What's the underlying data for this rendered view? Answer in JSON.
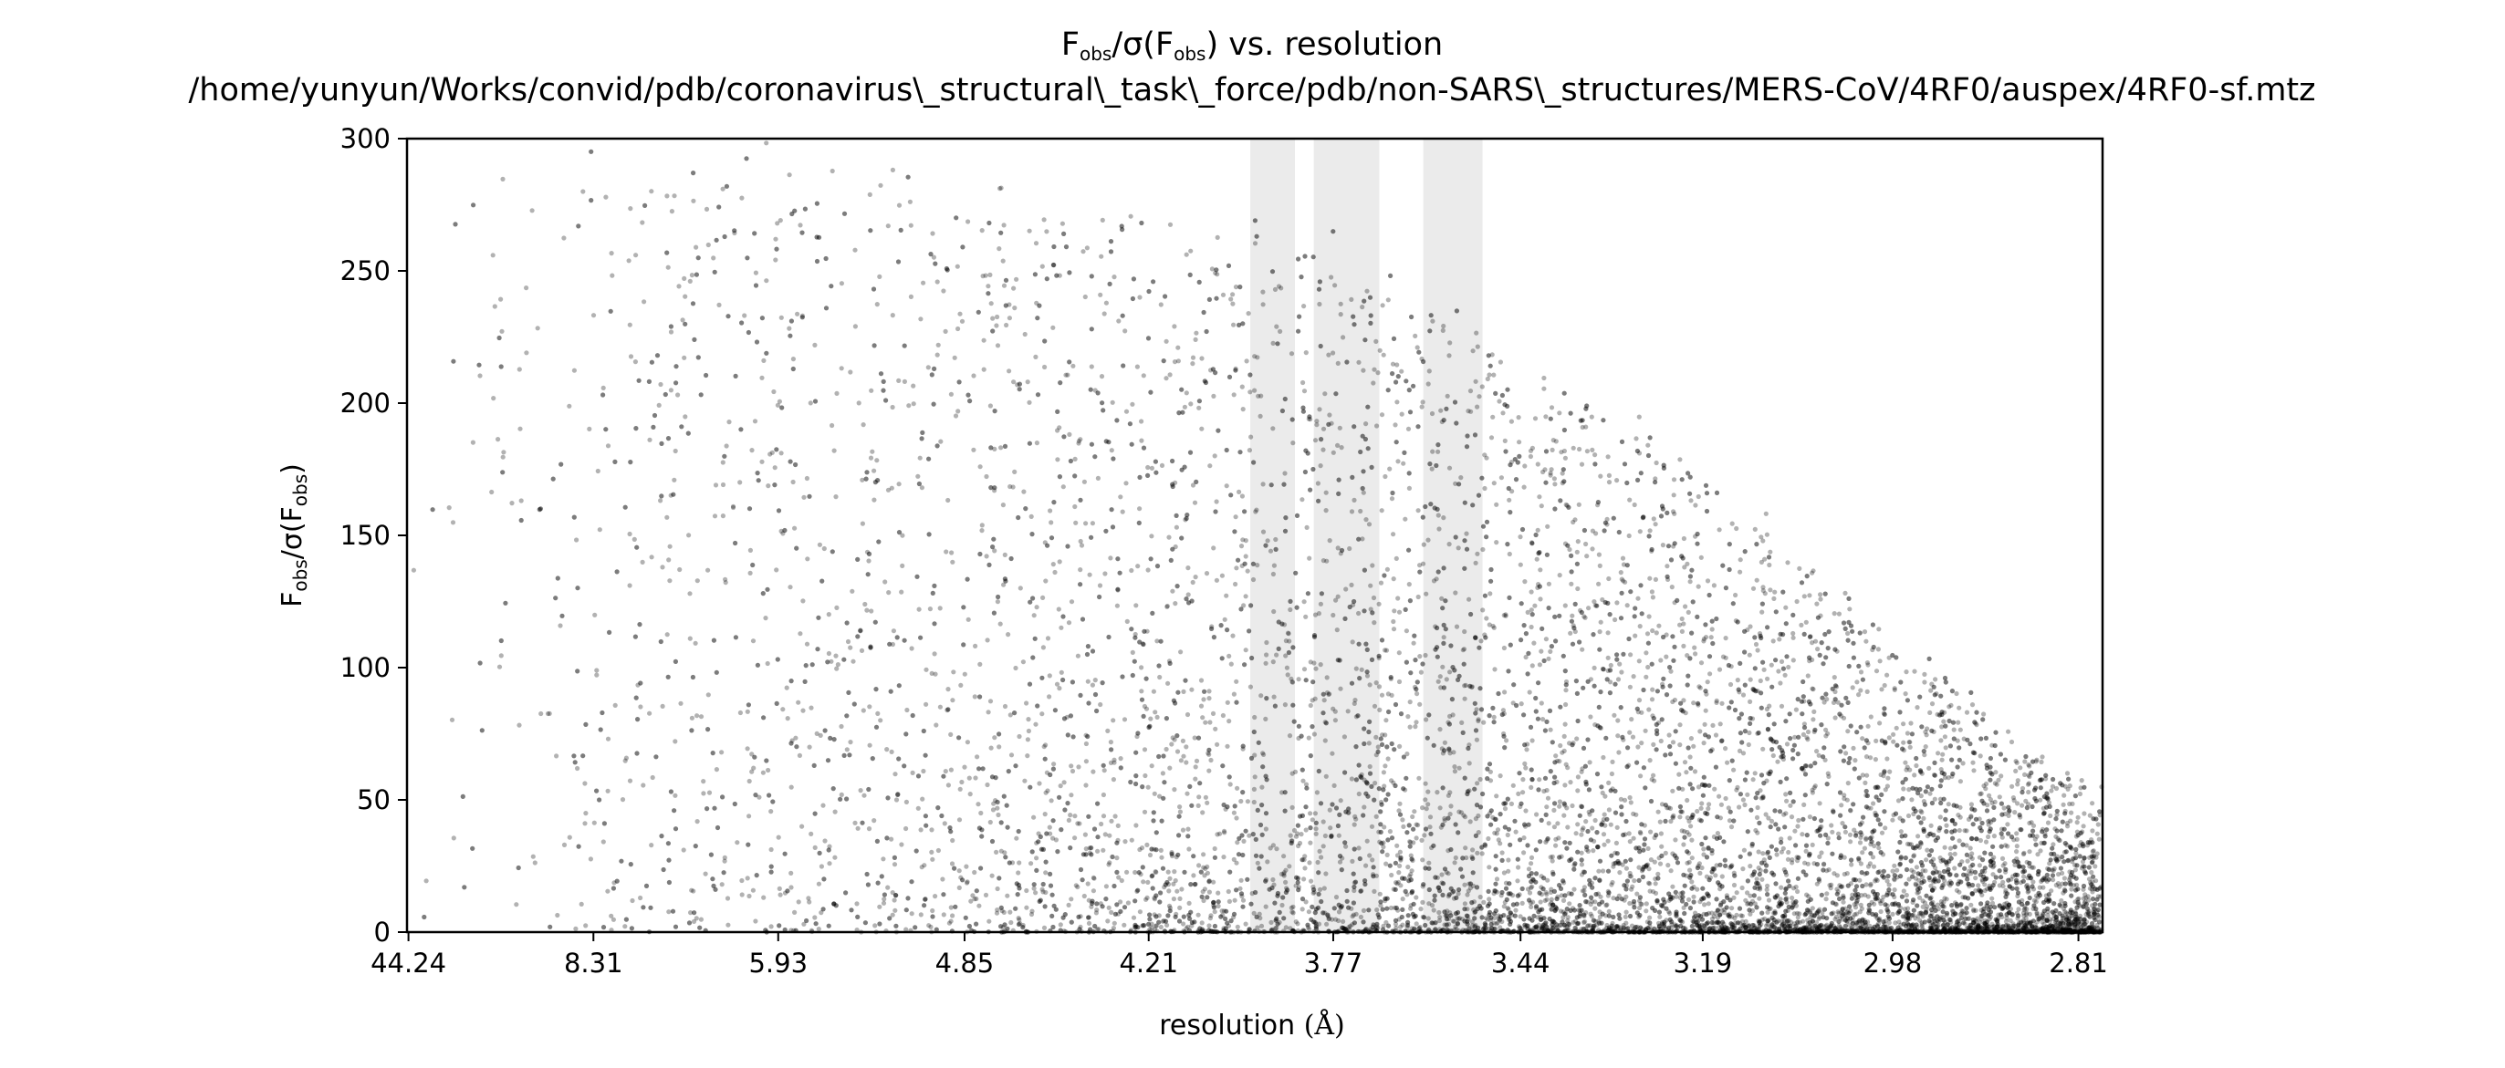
{
  "chart_data": {
    "type": "scatter",
    "title": {
      "line1_prefix": "F",
      "line1_sub1": "obs",
      "line1_mid": "/σ(F",
      "line1_sub2": "obs",
      "line1_suffix": ") vs. resolution",
      "line2": "/home/yunyun/Works/convid/pdb/coronavirus\\_structural\\_task\\_force/pdb/non-SARS\\_structures/MERS-CoV/4RF0/auspex/4RF0-sf.mtz"
    },
    "xlabel": {
      "text": "resolution ",
      "unit": "(Å)"
    },
    "ylabel": {
      "prefix": "F",
      "sub1": "obs",
      "mid": "/σ(F",
      "sub2": "obs",
      "suffix": ")"
    },
    "x_axis": {
      "quantity": "resolution (Å)",
      "scale": "reciprocal-squared (1/d²)",
      "range": [
        50.0,
        2.79
      ],
      "ticks": [
        44.24,
        8.31,
        5.93,
        4.85,
        4.21,
        3.77,
        3.44,
        3.19,
        2.98,
        2.81
      ],
      "tick_labels": [
        "44.24",
        "8.31",
        "5.93",
        "4.85",
        "4.21",
        "3.77",
        "3.44",
        "3.19",
        "2.98",
        "2.81"
      ]
    },
    "y_axis": {
      "range": [
        0,
        300
      ],
      "ticks": [
        0,
        50,
        100,
        150,
        200,
        250,
        300
      ],
      "tick_labels": [
        "0",
        "50",
        "100",
        "150",
        "200",
        "250",
        "300"
      ]
    },
    "ice_ring_bands": [
      {
        "from": 3.95,
        "to": 3.85
      },
      {
        "from": 3.81,
        "to": 3.68
      },
      {
        "from": 3.6,
        "to": 3.5
      }
    ],
    "colors": {
      "points": "#000000",
      "bands": "#ebebeb",
      "axes": "#000000"
    },
    "point_density_profile": [
      {
        "resolution": 44.24,
        "upper_envelope": 280,
        "density": "low"
      },
      {
        "resolution": 8.31,
        "upper_envelope": 295,
        "density": "medium"
      },
      {
        "resolution": 5.93,
        "upper_envelope": 285,
        "density": "high"
      },
      {
        "resolution": 4.85,
        "upper_envelope": 280,
        "density": "high"
      },
      {
        "resolution": 4.21,
        "upper_envelope": 265,
        "density": "high"
      },
      {
        "resolution": 3.77,
        "upper_envelope": 255,
        "density": "high"
      },
      {
        "resolution": 3.44,
        "upper_envelope": 215,
        "density": "very high"
      },
      {
        "resolution": 3.19,
        "upper_envelope": 175,
        "density": "very high"
      },
      {
        "resolution": 2.98,
        "upper_envelope": 110,
        "density": "very high"
      },
      {
        "resolution": 2.81,
        "upper_envelope": 55,
        "density": "very high"
      }
    ],
    "grid": false,
    "legend": "none"
  }
}
